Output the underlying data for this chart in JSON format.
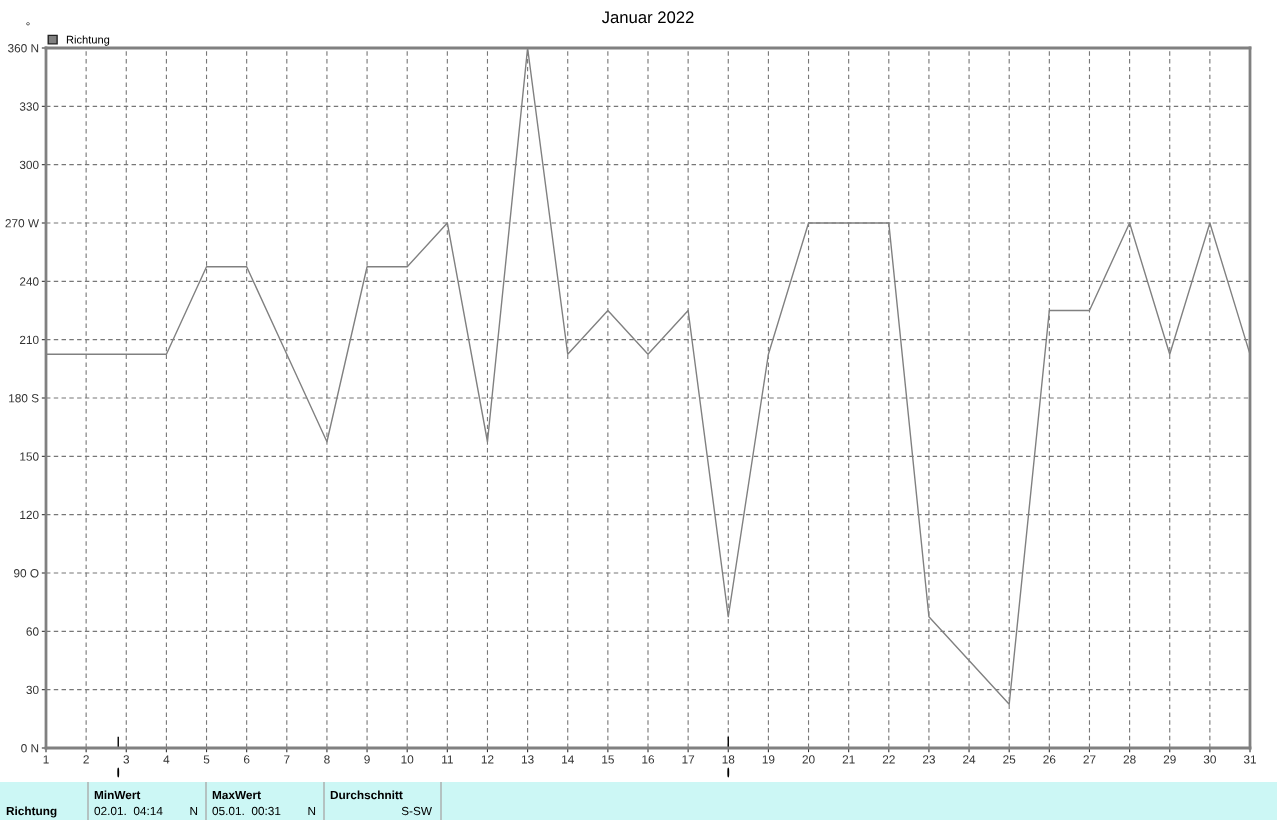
{
  "chart_data": {
    "type": "line",
    "title": "Januar 2022",
    "x": [
      1,
      2,
      3,
      4,
      5,
      6,
      7,
      8,
      9,
      10,
      11,
      12,
      13,
      14,
      15,
      16,
      17,
      18,
      19,
      20,
      21,
      22,
      23,
      24,
      25,
      26,
      27,
      28,
      29,
      30,
      31
    ],
    "series": [
      {
        "name": "Richtung",
        "color": "#808080",
        "values": [
          202.5,
          202.5,
          202.5,
          202.5,
          247.5,
          247.5,
          202.5,
          157.5,
          247.5,
          247.5,
          270,
          157.5,
          360,
          202.5,
          225,
          202.5,
          225,
          67.5,
          202.5,
          270,
          270,
          270,
          67.5,
          45,
          22.5,
          225,
          225,
          270,
          202.5,
          270,
          202.5
        ]
      }
    ],
    "xlim": [
      1,
      31
    ],
    "xticks": [
      1,
      2,
      3,
      4,
      5,
      6,
      7,
      8,
      9,
      10,
      11,
      12,
      13,
      14,
      15,
      16,
      17,
      18,
      19,
      20,
      21,
      22,
      23,
      24,
      25,
      26,
      27,
      28,
      29,
      30,
      31
    ],
    "ylim": [
      0,
      360
    ],
    "yticks": [
      {
        "value": 0,
        "label": "0 N"
      },
      30,
      60,
      {
        "value": 90,
        "label": "90 O"
      },
      120,
      150,
      {
        "value": 180,
        "label": "180 S"
      },
      210,
      240,
      {
        "value": 270,
        "label": "270 W"
      },
      300,
      330,
      {
        "value": 360,
        "label": "360 N"
      }
    ],
    "ylabel": "°",
    "grid": true,
    "legend": "top left",
    "marker": "none",
    "line_style": "solid",
    "annotations": [
      "Richtung",
      "MinWert",
      "02.01.  04:14",
      "N",
      "MaxWert",
      "05.01.  00:31",
      "N",
      "Durchschnitt",
      "S-SW"
    ]
  }
}
